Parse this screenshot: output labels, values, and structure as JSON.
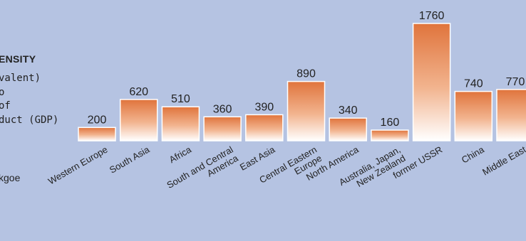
{
  "side_label": {
    "title": "ENSITY",
    "subtitle_lines": [
      "valent)",
      "o",
      "of",
      "duct (GDP)"
    ],
    "unit": "kgoe"
  },
  "colors": {
    "background": "#b5c3e2",
    "bar_top": "#e0743c",
    "bar_bottom": "#ffffff",
    "bar_border": "#ffffff",
    "text": "#222222"
  },
  "chart_data": {
    "type": "bar",
    "categories": [
      "Western Europe",
      "South Asia",
      "Africa",
      "South and Central\nAmerica",
      "East Asia",
      "Central Eastern\nEurope",
      "North America",
      "Australia, Japan,\nNew Zealand",
      "former USSR",
      "China",
      "Middle East"
    ],
    "values": [
      200,
      620,
      510,
      360,
      390,
      890,
      340,
      160,
      1760,
      740,
      770
    ],
    "data_labels": [
      "200",
      "620",
      "510",
      "360",
      "390",
      "890",
      "340",
      "160",
      "1760",
      "740",
      "770"
    ],
    "title": "",
    "xlabel": "",
    "ylabel": "",
    "ylim": [
      0,
      1760
    ],
    "grid": false,
    "legend": "none"
  }
}
